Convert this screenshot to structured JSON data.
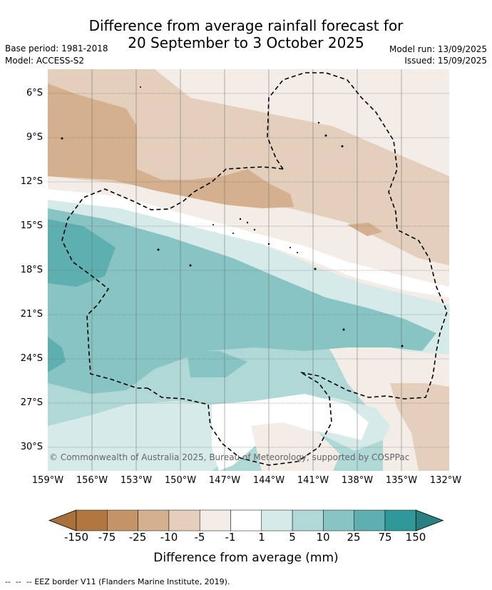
{
  "header": {
    "title_line1": "Difference from average rainfall forecast for",
    "title_line2": "20 September to 3 October 2025",
    "base_period": "Base period: 1981-2018",
    "model": "Model: ACCESS-S2",
    "model_run": "Model run: 13/09/2025",
    "issued": "Issued: 15/09/2025"
  },
  "map": {
    "lat_labels": [
      "6°S",
      "9°S",
      "12°S",
      "15°S",
      "18°S",
      "21°S",
      "24°S",
      "27°S",
      "30°S"
    ],
    "lon_labels": [
      "159°W",
      "156°W",
      "153°W",
      "150°W",
      "147°W",
      "144°W",
      "141°W",
      "138°W",
      "135°W",
      "132°W"
    ],
    "copyright": "© Commonwealth of Australia 2025, Bureau of Meteorology, supported by COSPPac"
  },
  "colorbar": {
    "labels": [
      "-150",
      "-75",
      "-25",
      "-10",
      "-5",
      "-1",
      "1",
      "5",
      "10",
      "25",
      "75",
      "150"
    ],
    "colors": [
      "#a8703a",
      "#b07740",
      "#c49468",
      "#d4b08e",
      "#e4cfbd",
      "#f4ece6",
      "#ffffff",
      "#d6ebe9",
      "#afd8d6",
      "#87c4c3",
      "#5eb0b0",
      "#2f9898",
      "#2a7f80"
    ],
    "title": "Difference from average (mm)"
  },
  "footer": {
    "legend_text": "EEZ border V11 (Flanders Marine Institute, 2019)."
  }
}
